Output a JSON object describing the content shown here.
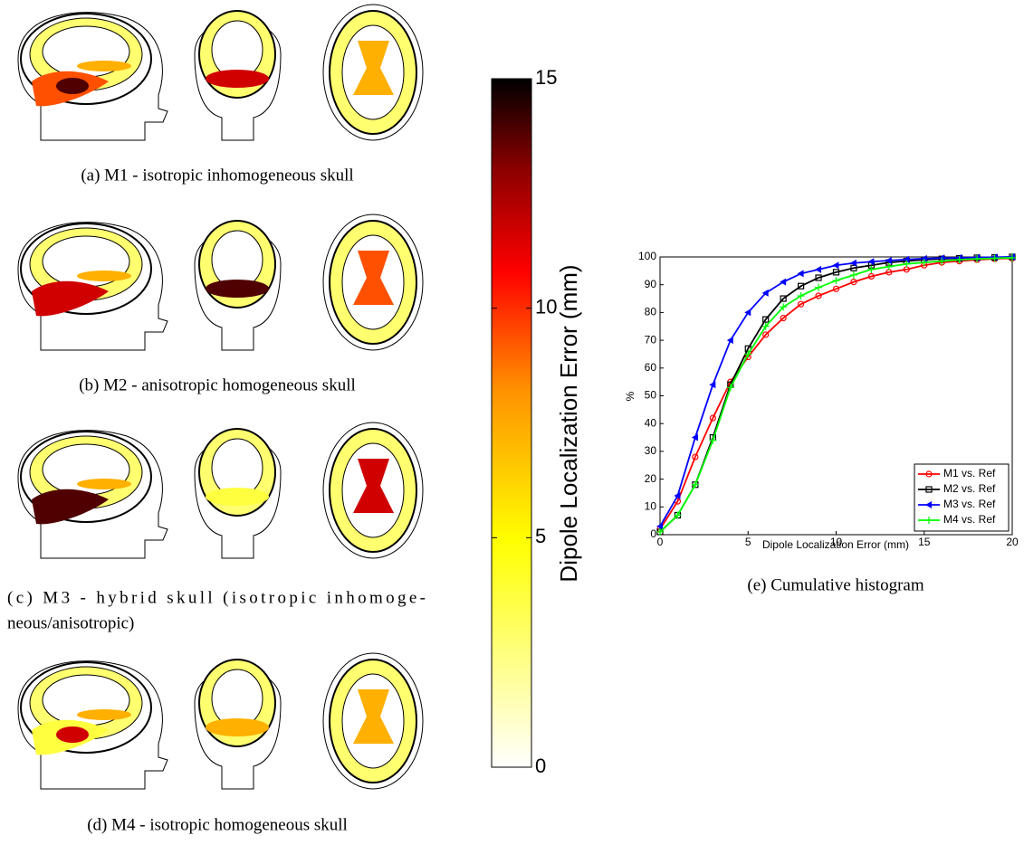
{
  "panels": [
    {
      "caption_lines": [
        "(a) M1 - isotropic inhomogeneous skull"
      ]
    },
    {
      "caption_lines": [
        "(b) M2 - anisotropic homogeneous skull"
      ]
    },
    {
      "caption_lines": [
        "(c) M3 - hybrid skull (isotropic inhomoge-",
        "neous/anisotropic)"
      ]
    },
    {
      "caption_lines": [
        "(d) M4 - isotropic homogeneous skull"
      ]
    }
  ],
  "colorbar": {
    "label": "Dipole Localization Error (mm)",
    "lim": [
      0,
      15
    ],
    "ticks": [
      0,
      5,
      10,
      15
    ]
  },
  "chart_data": {
    "type": "line",
    "caption": "(e) Cumulative histogram",
    "x_label": "Dipole Localization Error (mm)",
    "y_label": "%",
    "x": [
      0,
      1,
      2,
      3,
      4,
      5,
      6,
      7,
      8,
      9,
      10,
      11,
      12,
      13,
      14,
      15,
      16,
      17,
      18,
      19,
      20
    ],
    "series": [
      {
        "name": "M1 vs. Ref",
        "color": "#ff0000",
        "marker": "circle",
        "values": [
          2,
          12,
          28,
          42,
          55,
          64,
          72,
          78,
          83,
          86,
          88.5,
          91,
          93,
          94.5,
          95.5,
          97,
          98,
          98.5,
          99,
          99.3,
          99.5
        ]
      },
      {
        "name": "M2 vs. Ref",
        "color": "#000000",
        "marker": "square",
        "values": [
          1,
          7,
          18,
          35,
          54,
          67,
          77.5,
          85,
          89.5,
          92.5,
          94.5,
          96,
          97,
          98,
          98.5,
          99,
          99.3,
          99.5,
          99.7,
          99.8,
          100
        ]
      },
      {
        "name": "M3 vs. Ref",
        "color": "#0000ff",
        "marker": "triangle",
        "values": [
          3,
          14,
          35,
          54,
          70,
          80,
          87,
          91,
          94,
          95.5,
          97,
          97.8,
          98.3,
          98.7,
          99.1,
          99.4,
          99.6,
          99.7,
          99.8,
          99.9,
          100
        ]
      },
      {
        "name": "M4 vs. Ref",
        "color": "#00ff00",
        "marker": "plus",
        "values": [
          1,
          7,
          18,
          34,
          53,
          65,
          75,
          82,
          86,
          89,
          91.5,
          93.5,
          95.5,
          96.5,
          97.5,
          98,
          98.5,
          99,
          99.3,
          99.5,
          99.7
        ]
      }
    ],
    "xlim": [
      0,
      20
    ],
    "ylim": [
      0,
      100
    ],
    "xticks": [
      0,
      5,
      10,
      15,
      20
    ],
    "yticks": [
      0,
      10,
      20,
      30,
      40,
      50,
      60,
      70,
      80,
      90,
      100
    ],
    "legend": "lower right"
  }
}
